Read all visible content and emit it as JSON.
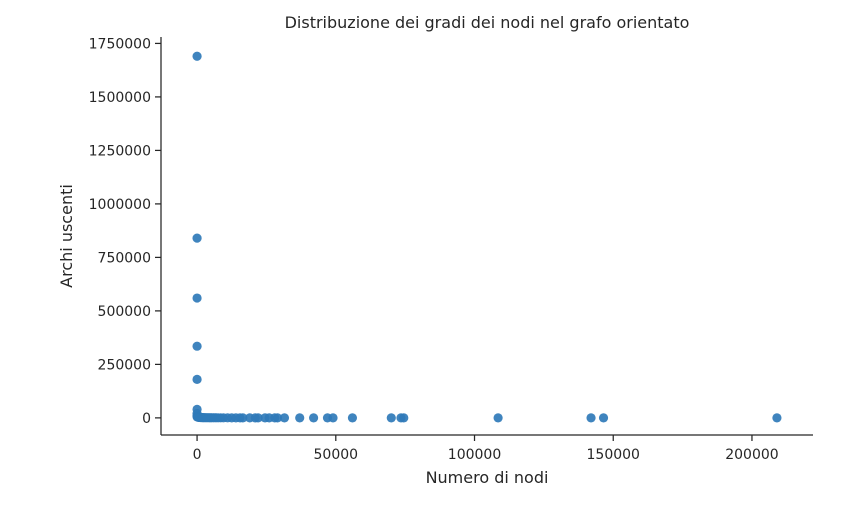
{
  "chart_data": {
    "type": "scatter",
    "title": "Distribuzione dei gradi dei nodi nel grafo orientato",
    "xlabel": "Numero di nodi",
    "ylabel": "Archi uscenti",
    "xlim": [
      -13000,
      222000
    ],
    "ylim": [
      -80000,
      1780000
    ],
    "xticks": [
      0,
      50000,
      100000,
      150000,
      200000
    ],
    "yticks": [
      0,
      250000,
      500000,
      750000,
      1000000,
      1250000,
      1500000,
      1750000
    ],
    "grid": false,
    "legend": "none",
    "color": "#2f7ab9",
    "series": [
      {
        "x": [
          0,
          0,
          0,
          0,
          0,
          0,
          0,
          0,
          0,
          200,
          400,
          700,
          1000,
          1300,
          1700,
          2100,
          2500,
          3000,
          3500,
          4000,
          4600,
          5200,
          6000,
          6800,
          7600,
          8500,
          9500,
          11000,
          12500,
          14000,
          15500,
          16500,
          19000,
          21000,
          22000,
          24500,
          26000,
          28000,
          29000,
          31500,
          37000,
          42000,
          47000,
          49000,
          56000,
          70000,
          73500,
          74500,
          108500,
          142000,
          146500,
          209000
        ],
        "y": [
          1690000,
          840000,
          560000,
          335000,
          180000,
          40000,
          20000,
          10000,
          5000,
          4000,
          3000,
          2500,
          2000,
          1800,
          1500,
          1300,
          1100,
          1000,
          900,
          800,
          700,
          600,
          500,
          450,
          400,
          350,
          300,
          250,
          200,
          180,
          160,
          150,
          120,
          100,
          90,
          80,
          70,
          60,
          50,
          40,
          30,
          25,
          20,
          18,
          15,
          10,
          8,
          7,
          5,
          3,
          3,
          1
        ]
      }
    ]
  }
}
